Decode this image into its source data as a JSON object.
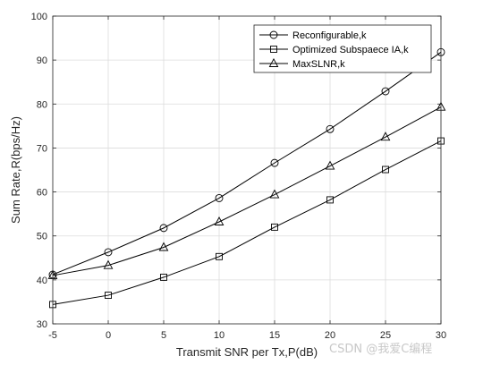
{
  "chart_data": {
    "type": "line",
    "xlabel": "Transmit SNR per Tx,P(dB)",
    "ylabel": "Sum Rate,R(bps/Hz)",
    "xlim": [
      -5,
      30
    ],
    "ylim": [
      30,
      100
    ],
    "xticks": [
      -5,
      0,
      5,
      10,
      15,
      20,
      25,
      30
    ],
    "yticks": [
      30,
      40,
      50,
      60,
      70,
      80,
      90,
      100
    ],
    "grid": true,
    "legend_position": "top-right",
    "x": [
      -5,
      0,
      5,
      10,
      15,
      20,
      25,
      30
    ],
    "series": [
      {
        "name": "Reconfigurable,k",
        "marker": "circle",
        "values": [
          41.2,
          46.3,
          51.8,
          58.6,
          66.6,
          74.3,
          82.9,
          91.8
        ]
      },
      {
        "name": "Optimized Subspaece IA,k",
        "marker": "square",
        "values": [
          34.4,
          36.5,
          40.6,
          45.3,
          52.0,
          58.2,
          65.1,
          71.6
        ]
      },
      {
        "name": "MaxSLNR,k",
        "marker": "triangle",
        "values": [
          41.0,
          43.3,
          47.4,
          53.2,
          59.4,
          65.9,
          72.5,
          79.3
        ]
      }
    ],
    "colors": {
      "line": "#000000",
      "grid": "#dcdcdc",
      "axis": "#262626"
    }
  },
  "watermark": "CSDN @我爱C编程"
}
